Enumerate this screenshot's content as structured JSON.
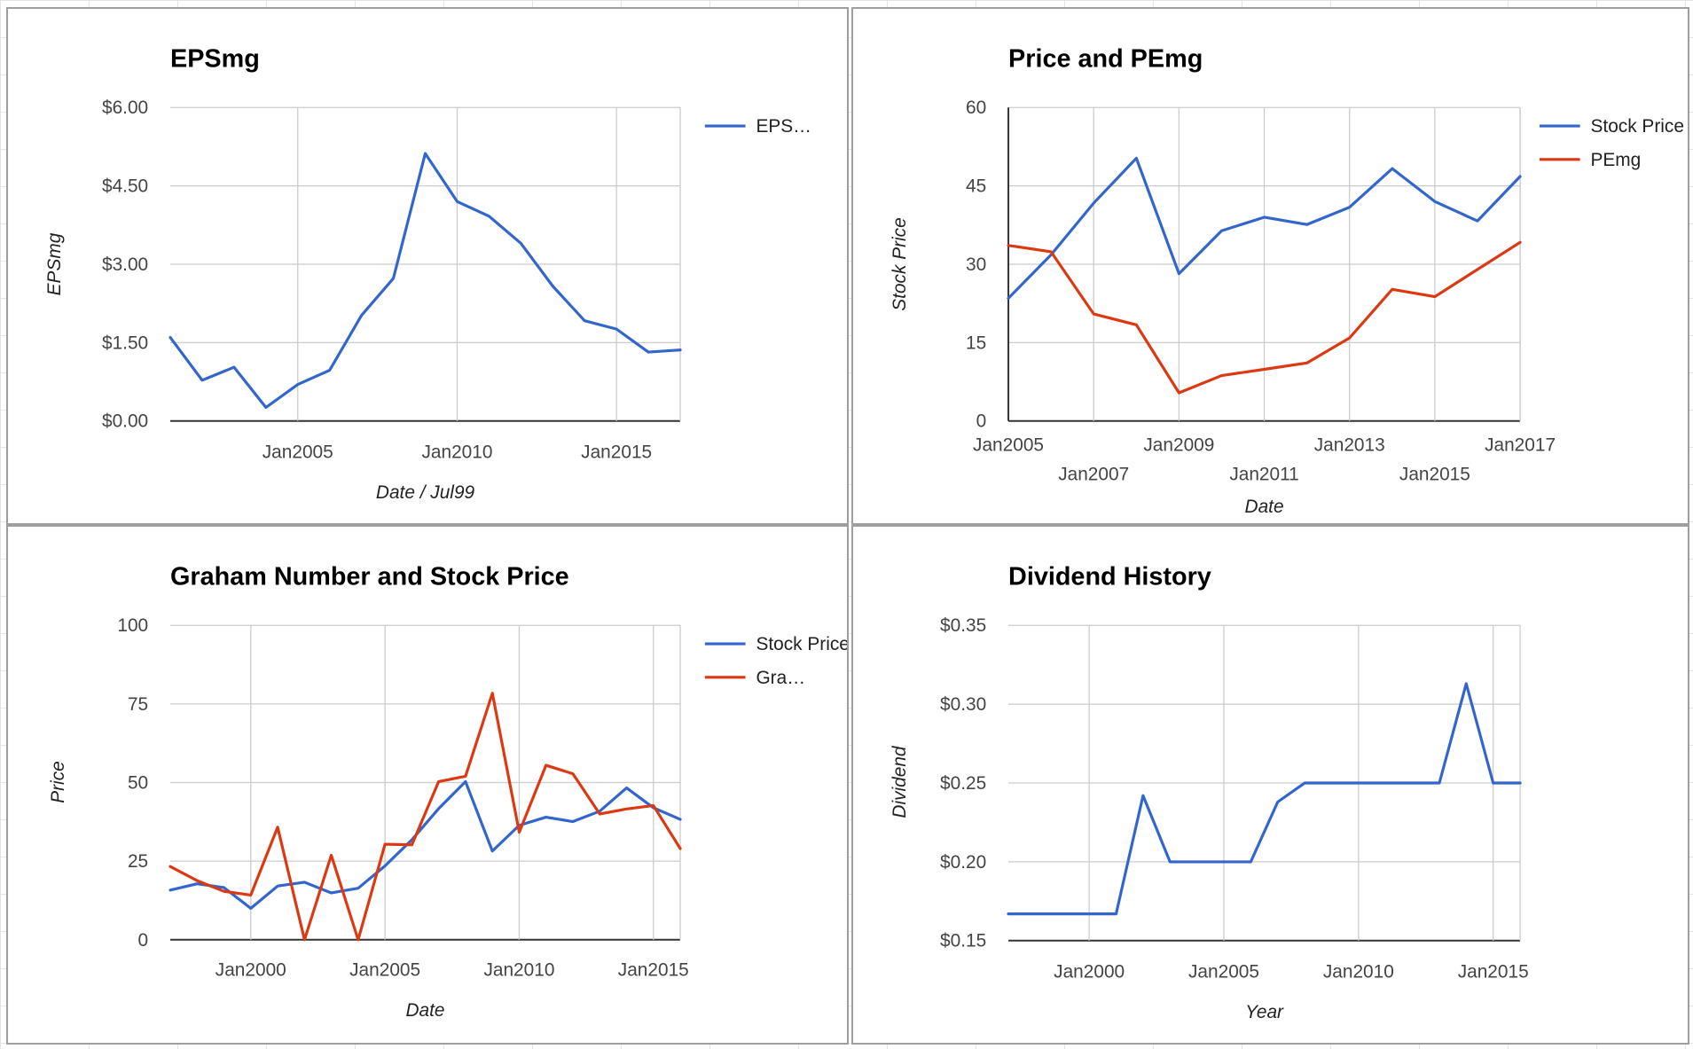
{
  "chart_data": [
    {
      "type": "line",
      "title": "EPSmg",
      "xlabel": "Date / Jul99",
      "ylabel": "EPSmg",
      "x": [
        "Jan2001",
        "Jan2002",
        "Jan2003",
        "Jan2004",
        "Jan2005",
        "Jan2006",
        "Jan2007",
        "Jan2008",
        "Jan2009",
        "Jan2010",
        "Jan2011",
        "Jan2012",
        "Jan2013",
        "Jan2014",
        "Jan2015",
        "Jan2016",
        "Jan2017"
      ],
      "series": [
        {
          "name": "EPS…",
          "color": "#3366cc",
          "values": [
            1.6,
            0.78,
            1.03,
            0.26,
            0.7,
            0.97,
            2.02,
            2.73,
            5.12,
            4.2,
            3.92,
            3.4,
            2.58,
            1.92,
            1.76,
            1.32,
            1.36
          ]
        }
      ],
      "xlim": [
        "Jan2001",
        "Jan2017"
      ],
      "ylim": [
        0,
        6
      ],
      "yticks": [
        0,
        1.5,
        3,
        4.5,
        6
      ],
      "ytick_labels": [
        "$0.00",
        "$1.50",
        "$3.00",
        "$4.50",
        "$6.00"
      ],
      "xticks": [
        "Jan2005",
        "Jan2010",
        "Jan2015"
      ],
      "grid": true,
      "legend": "right"
    },
    {
      "type": "line",
      "title": "Price and PEmg",
      "xlabel": "Date",
      "ylabel": "Stock Price",
      "x": [
        "Jan2005",
        "Jan2006",
        "Jan2007",
        "Jan2008",
        "Jan2009",
        "Jan2010",
        "Jan2011",
        "Jan2012",
        "Jan2013",
        "Jan2014",
        "Jan2015",
        "Jan2016",
        "Jan2017"
      ],
      "series": [
        {
          "name": "Stock Price",
          "color": "#3366cc",
          "values": [
            23.5,
            31.8,
            41.7,
            50.3,
            28.2,
            36.4,
            39.0,
            37.6,
            40.9,
            48.3,
            42.0,
            38.3,
            46.8
          ]
        },
        {
          "name": "PEmg",
          "color": "#dc3912",
          "values": [
            33.6,
            32.4,
            20.5,
            18.4,
            5.4,
            8.7,
            9.9,
            11.1,
            15.9,
            25.2,
            23.8,
            29.0,
            34.2
          ]
        }
      ],
      "xlim": [
        "Jan2005",
        "Jan2017"
      ],
      "ylim": [
        0,
        60
      ],
      "yticks": [
        0,
        15,
        30,
        45,
        60
      ],
      "ytick_labels": [
        "0",
        "15",
        "30",
        "45",
        "60"
      ],
      "xticks": [
        "Jan2005",
        "Jan2007",
        "Jan2009",
        "Jan2011",
        "Jan2013",
        "Jan2015",
        "Jan2017"
      ],
      "grid": true,
      "legend": "right"
    },
    {
      "type": "line",
      "title": "Graham Number and Stock Price",
      "xlabel": "Date",
      "ylabel": "Price",
      "x": [
        "Jan1997",
        "Jan1998",
        "Jan1999",
        "Jan2000",
        "Jan2001",
        "Jan2002",
        "Jan2003",
        "Jan2004",
        "Jan2005",
        "Jan2006",
        "Jan2007",
        "Jan2008",
        "Jan2009",
        "Jan2010",
        "Jan2011",
        "Jan2012",
        "Jan2013",
        "Jan2014",
        "Jan2015",
        "Jan2016"
      ],
      "series": [
        {
          "name": "Stock Price",
          "color": "#3366cc",
          "values": [
            15.8,
            17.8,
            16.6,
            10.0,
            17.1,
            18.3,
            14.9,
            16.4,
            23.5,
            31.8,
            41.7,
            50.3,
            28.2,
            36.4,
            39.0,
            37.6,
            40.9,
            48.3,
            42.0,
            38.3
          ]
        },
        {
          "name": "Gra…",
          "color": "#dc3912",
          "values": [
            23.3,
            18.8,
            15.4,
            14.2,
            35.8,
            0.0,
            26.9,
            0.0,
            30.4,
            30.2,
            50.3,
            52.0,
            78.4,
            34.2,
            55.5,
            52.8,
            40.0,
            41.6,
            42.7,
            29.0
          ]
        }
      ],
      "xlim": [
        "Jan1997",
        "Jan2016"
      ],
      "ylim": [
        0,
        100
      ],
      "yticks": [
        0,
        25,
        50,
        75,
        100
      ],
      "ytick_labels": [
        "0",
        "25",
        "50",
        "75",
        "100"
      ],
      "xticks": [
        "Jan2000",
        "Jan2005",
        "Jan2010",
        "Jan2015"
      ],
      "grid": true,
      "legend": "right"
    },
    {
      "type": "line",
      "title": "Dividend History",
      "xlabel": "Year",
      "ylabel": "Dividend",
      "x": [
        "Jan1997",
        "Jan1998",
        "Jan1999",
        "Jan2000",
        "Jan2001",
        "Jan2002",
        "Jan2003",
        "Jan2004",
        "Jan2005",
        "Jan2006",
        "Jan2007",
        "Jan2008",
        "Jan2009",
        "Jan2010",
        "Jan2011",
        "Jan2012",
        "Jan2013",
        "Jan2014",
        "Jan2015",
        "Jan2016"
      ],
      "series": [
        {
          "name": "",
          "color": "#3366cc",
          "values": [
            0.167,
            0.167,
            0.167,
            0.167,
            0.167,
            0.242,
            0.2,
            0.2,
            0.2,
            0.2,
            0.238,
            0.25,
            0.25,
            0.25,
            0.25,
            0.25,
            0.25,
            0.313,
            0.25,
            0.25
          ]
        }
      ],
      "xlim": [
        "Jan1997",
        "Jan2016"
      ],
      "ylim": [
        0.15,
        0.35
      ],
      "yticks": [
        0.15,
        0.2,
        0.25,
        0.3,
        0.35
      ],
      "ytick_labels": [
        "$0.15",
        "$0.20",
        "$0.25",
        "$0.30",
        "$0.35"
      ],
      "xticks": [
        "Jan2000",
        "Jan2005",
        "Jan2010",
        "Jan2015"
      ],
      "grid": true,
      "legend": "none"
    }
  ]
}
